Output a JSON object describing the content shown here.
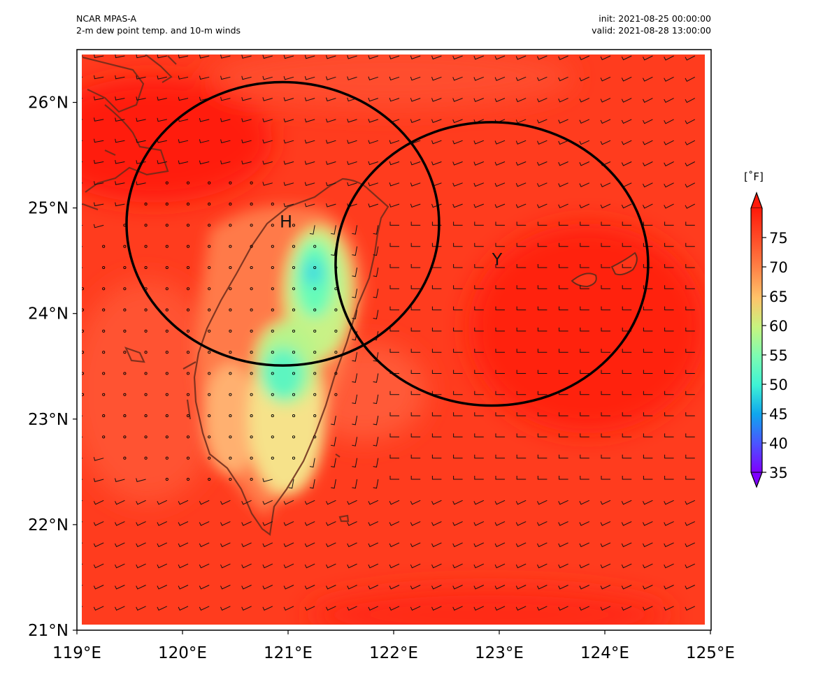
{
  "header": {
    "model": "NCAR MPAS-A",
    "product": "2-m dew point temp. and 10-m winds",
    "init": "init: 2021-08-25 00:00:00",
    "valid": "valid: 2021-08-28 13:00:00"
  },
  "map": {
    "lon_range": [
      119,
      125
    ],
    "lat_range": [
      21,
      26.5
    ],
    "lon_ticks": [
      {
        "value": 119,
        "label": "119°E"
      },
      {
        "value": 120,
        "label": "120°E"
      },
      {
        "value": 121,
        "label": "121°E"
      },
      {
        "value": 122,
        "label": "122°E"
      },
      {
        "value": 123,
        "label": "123°E"
      },
      {
        "value": 124,
        "label": "124°E"
      },
      {
        "value": 125,
        "label": "125°E"
      }
    ],
    "lat_ticks": [
      {
        "value": 21,
        "label": "21°N"
      },
      {
        "value": 22,
        "label": "22°N"
      },
      {
        "value": 23,
        "label": "23°N"
      },
      {
        "value": 24,
        "label": "24°N"
      },
      {
        "value": 25,
        "label": "25°N"
      },
      {
        "value": 26,
        "label": "26°N"
      }
    ],
    "circles": [
      {
        "name": "H",
        "lon": 120.95,
        "lat": 24.85,
        "radius_deg": 1.48
      },
      {
        "name": "Y",
        "lon": 122.93,
        "lat": 24.47,
        "radius_deg": 1.48
      }
    ],
    "markers": [
      {
        "label": "H",
        "lon": 120.98,
        "lat": 24.87
      },
      {
        "label": "Y",
        "lon": 122.98,
        "lat": 24.51
      }
    ],
    "colors": {
      "background_field": "#ff3c1e",
      "coast": "#6b2a1a",
      "circle": "#000000"
    }
  },
  "colorbar": {
    "unit": "[˚F]",
    "min": 35,
    "max": 80,
    "ticks": [
      {
        "value": 35,
        "label": "35"
      },
      {
        "value": 40,
        "label": "40"
      },
      {
        "value": 45,
        "label": "45"
      },
      {
        "value": 50,
        "label": "50"
      },
      {
        "value": 55,
        "label": "55"
      },
      {
        "value": 60,
        "label": "60"
      },
      {
        "value": 65,
        "label": "65"
      },
      {
        "value": 70,
        "label": "70"
      },
      {
        "value": 75,
        "label": "75"
      }
    ]
  }
}
